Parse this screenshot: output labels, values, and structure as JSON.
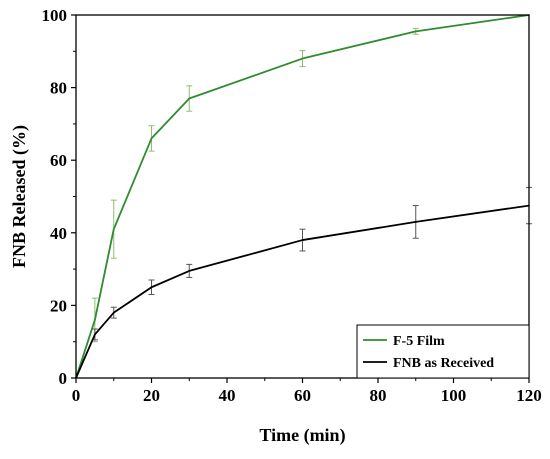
{
  "chart_data": {
    "type": "line",
    "title": "",
    "xlabel": "Time (min)",
    "ylabel": "FNB Released (%)",
    "xlim": [
      0,
      120
    ],
    "ylim": [
      0,
      100
    ],
    "x_ticks": [
      0,
      20,
      40,
      60,
      80,
      100,
      120
    ],
    "x_tick_labels": [
      "0",
      "20",
      "40",
      "60",
      "80",
      "100",
      "120"
    ],
    "y_ticks": [
      0,
      20,
      40,
      60,
      80,
      100
    ],
    "y_tick_labels": [
      "0",
      "20",
      "40",
      "60",
      "80",
      "100"
    ],
    "grid": false,
    "legend_position": "bottom-right",
    "series": [
      {
        "name": "F-5 Film",
        "color": "#2e8b2e",
        "errorbar_color": "#8fbf6a",
        "x": [
          0,
          5,
          10,
          20,
          30,
          60,
          90,
          120
        ],
        "values": [
          0,
          16,
          41,
          66,
          77,
          88,
          95.5,
          100
        ],
        "errors": [
          0,
          6,
          8,
          3.5,
          3.5,
          2.2,
          0.8,
          0
        ]
      },
      {
        "name": "FNB as Received",
        "color": "#000000",
        "errorbar_color": "#555555",
        "x": [
          0,
          5,
          10,
          20,
          30,
          60,
          90,
          120
        ],
        "values": [
          0,
          12,
          18,
          25,
          29.5,
          38,
          43,
          47.5
        ],
        "errors": [
          0,
          1.5,
          1.5,
          2,
          1.8,
          3,
          4.5,
          5
        ]
      }
    ]
  }
}
